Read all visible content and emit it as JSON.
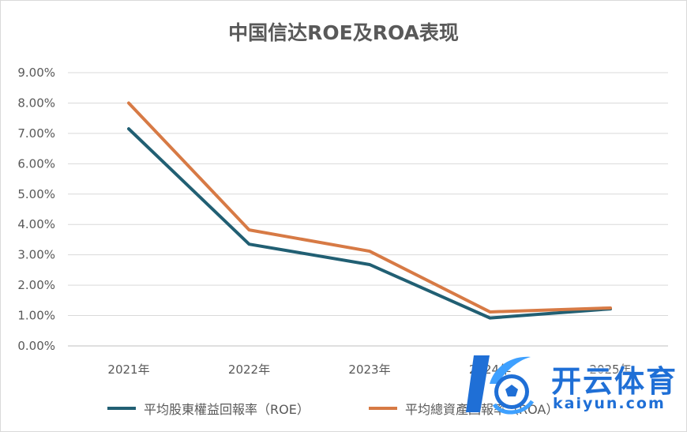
{
  "chart_data": {
    "type": "line",
    "title": "中国信达ROE及ROA表现",
    "categories": [
      "2021年",
      "2022年",
      "2023年",
      "2024年",
      "2025年"
    ],
    "y_ticks": [
      "0.00%",
      "1.00%",
      "2.00%",
      "3.00%",
      "4.00%",
      "5.00%",
      "6.00%",
      "7.00%",
      "8.00%",
      "9.00%"
    ],
    "ylim": [
      0,
      9
    ],
    "y_unit": "%",
    "grid": true,
    "legend_position": "bottom",
    "series": [
      {
        "name": "平均股東權益回報率（ROE）",
        "color": "#215f73",
        "values": [
          7.15,
          3.35,
          2.68,
          0.92,
          1.22
        ]
      },
      {
        "name": "平均總資產回報率（ROA）",
        "color": "#d77a45",
        "values": [
          8.0,
          3.82,
          3.12,
          1.12,
          1.25
        ]
      }
    ]
  },
  "watermark": {
    "title": "开云体育",
    "subtitle": "kaiyun.com"
  }
}
